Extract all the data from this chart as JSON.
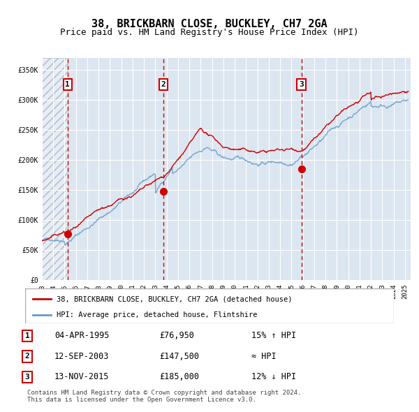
{
  "title": "38, BRICKBARN CLOSE, BUCKLEY, CH7 2GA",
  "subtitle": "Price paid vs. HM Land Registry's House Price Index (HPI)",
  "xlim": [
    1993.0,
    2025.5
  ],
  "ylim": [
    0,
    370000
  ],
  "yticks": [
    0,
    50000,
    100000,
    150000,
    200000,
    250000,
    300000,
    350000
  ],
  "ytick_labels": [
    "£0",
    "£50K",
    "£100K",
    "£150K",
    "£200K",
    "£250K",
    "£300K",
    "£350K"
  ],
  "sale_dates": [
    1995.26,
    2003.71,
    2015.87
  ],
  "sale_prices": [
    76950,
    147500,
    185000
  ],
  "sale_labels": [
    "1",
    "2",
    "3"
  ],
  "vline_color": "#cc0000",
  "dot_color": "#cc0000",
  "hpi_line_color": "#6699cc",
  "price_line_color": "#cc0000",
  "legend_label_price": "38, BRICKBARN CLOSE, BUCKLEY, CH7 2GA (detached house)",
  "legend_label_hpi": "HPI: Average price, detached house, Flintshire",
  "table_rows": [
    [
      "1",
      "04-APR-1995",
      "£76,950",
      "15% ↑ HPI"
    ],
    [
      "2",
      "12-SEP-2003",
      "£147,500",
      "≈ HPI"
    ],
    [
      "3",
      "13-NOV-2015",
      "£185,000",
      "12% ↓ HPI"
    ]
  ],
  "footer": "Contains HM Land Registry data © Crown copyright and database right 2024.\nThis data is licensed under the Open Government Licence v3.0.",
  "bg_color": "#dce6f0",
  "plot_bg_color": "#dce6f0",
  "hatch_color": "#b0b8c8",
  "title_fontsize": 11,
  "subtitle_fontsize": 9,
  "axis_fontsize": 8
}
